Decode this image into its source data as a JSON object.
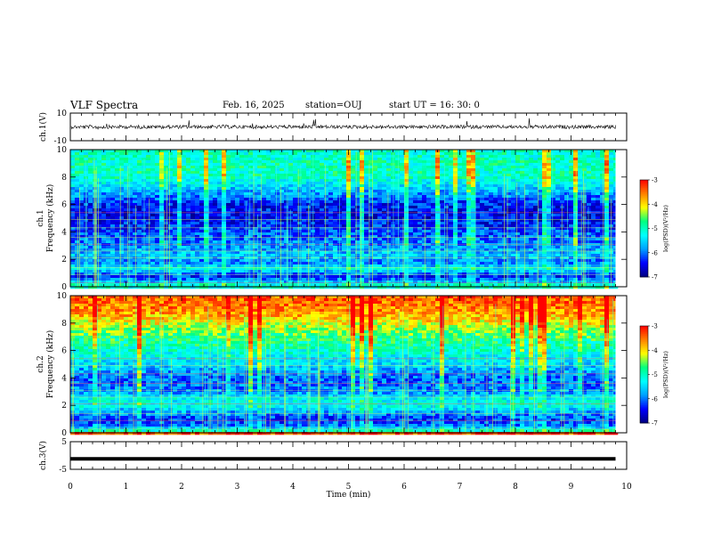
{
  "header": {
    "title": "VLF Spectra",
    "date": "Feb. 16, 2025",
    "station": "station=OUJ",
    "start": "start  UT =   16: 30: 0"
  },
  "chart_data": [
    {
      "type": "line",
      "panel": "ch1-waveform",
      "ylabel": "ch.1(V)",
      "ylim": [
        -10,
        10
      ],
      "yticks": [
        "10",
        "-10"
      ],
      "xlim": [
        0,
        10
      ],
      "series": [
        {
          "values_description": "noise around 0 V with occasional spikes",
          "level": 0
        }
      ]
    },
    {
      "type": "heatmap",
      "panel": "ch1-spectrogram",
      "ylabel_line1": "ch.1",
      "ylabel_line2": "Frequency (kHz)",
      "ylim": [
        0,
        10
      ],
      "yticks": [
        "0",
        "2",
        "4",
        "6",
        "8",
        "10"
      ],
      "xlim": [
        0,
        10
      ],
      "data_end_min": 9.8,
      "colorbar": {
        "label": "log(PSD)(V²/Hz)",
        "range": [
          -7,
          -3
        ],
        "ticks": [
          "-3",
          "-4",
          "-5",
          "-6",
          "-7"
        ]
      },
      "freq_profile": [
        {
          "f": 0.0,
          "v": -4.6
        },
        {
          "f": 0.3,
          "v": -5.6
        },
        {
          "f": 0.8,
          "v": -6.4
        },
        {
          "f": 1.3,
          "v": -5.3
        },
        {
          "f": 1.8,
          "v": -6.0
        },
        {
          "f": 2.3,
          "v": -5.6
        },
        {
          "f": 3.0,
          "v": -5.9
        },
        {
          "f": 4.0,
          "v": -6.2
        },
        {
          "f": 5.0,
          "v": -6.5
        },
        {
          "f": 6.0,
          "v": -6.4
        },
        {
          "f": 7.0,
          "v": -5.7
        },
        {
          "f": 8.0,
          "v": -5.0
        },
        {
          "f": 9.0,
          "v": -5.0
        },
        {
          "f": 10.0,
          "v": -5.1
        }
      ]
    },
    {
      "type": "heatmap",
      "panel": "ch2-spectrogram",
      "ylabel_line1": "ch.2",
      "ylabel_line2": "Frequency (kHz)",
      "ylim": [
        0,
        10
      ],
      "yticks": [
        "0",
        "2",
        "4",
        "6",
        "8",
        "10"
      ],
      "xlim": [
        0,
        10
      ],
      "data_end_min": 9.8,
      "colorbar": {
        "label": "log(PSD)(V²/Hz)",
        "range": [
          -7,
          -3
        ],
        "ticks": [
          "-3",
          "-4",
          "-5",
          "-6",
          "-7"
        ]
      },
      "freq_profile": [
        {
          "f": 0.0,
          "v": -4.6
        },
        {
          "f": 0.5,
          "v": -6.0
        },
        {
          "f": 1.0,
          "v": -6.3
        },
        {
          "f": 1.5,
          "v": -5.8
        },
        {
          "f": 2.0,
          "v": -5.2
        },
        {
          "f": 2.5,
          "v": -5.3
        },
        {
          "f": 3.0,
          "v": -5.9
        },
        {
          "f": 4.0,
          "v": -6.1
        },
        {
          "f": 5.0,
          "v": -5.5
        },
        {
          "f": 6.0,
          "v": -5.1
        },
        {
          "f": 7.0,
          "v": -4.7
        },
        {
          "f": 8.0,
          "v": -4.1
        },
        {
          "f": 9.0,
          "v": -3.6
        },
        {
          "f": 10.0,
          "v": -3.4
        }
      ]
    },
    {
      "type": "line",
      "panel": "ch3-waveform",
      "ylabel": "ch.3(V)",
      "ylim": [
        -5,
        5
      ],
      "yticks": [
        "5",
        "-5"
      ],
      "xlim": [
        0,
        10
      ],
      "series": [
        {
          "level": -1.2
        }
      ]
    }
  ],
  "xaxis": {
    "label": "Time (min)",
    "ticks": [
      "0",
      "1",
      "2",
      "3",
      "4",
      "5",
      "6",
      "7",
      "8",
      "9",
      "10"
    ]
  },
  "colors": {
    "colormap": [
      "#000080",
      "#0000ff",
      "#00a0ff",
      "#00ffff",
      "#00ff80",
      "#ffff00",
      "#ff8000",
      "#ff0000",
      "#ffffff"
    ]
  }
}
